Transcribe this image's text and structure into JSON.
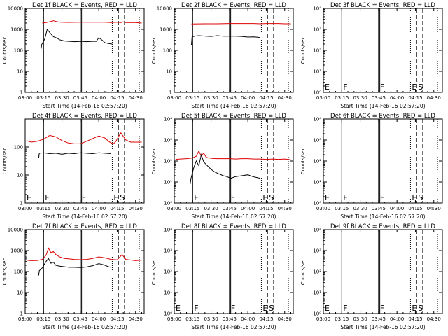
{
  "page": {
    "x_tick_labels": [
      "03:00",
      "03:15",
      "03:30",
      "03:45",
      "04:00",
      "04:15",
      "04:30"
    ],
    "xlabel": "Start Time (14-Feb-16 02:57:20)",
    "ylabel": "Counts/sec",
    "colors": {
      "events": "#000000",
      "lld": "#dd0000",
      "axes": "#000000"
    }
  },
  "chart_data": [
    {
      "type": "line",
      "title": "Det 1f BLACK = Events, RED = LLD",
      "xlim_minutes": [
        180,
        277
      ],
      "ylog": true,
      "ylim": [
        1,
        10000
      ],
      "y_tick_labels": [
        "1",
        "10",
        "100",
        "1000",
        "10000"
      ],
      "markers": [
        {
          "minute": 195,
          "style": "solid",
          "label": ""
        },
        {
          "minute": 225,
          "style": "solid",
          "label": ""
        },
        {
          "minute": 226,
          "style": "solid",
          "label": ""
        },
        {
          "minute": 251,
          "style": "dotted",
          "label": ""
        },
        {
          "minute": 256,
          "style": "dashed",
          "label": ""
        },
        {
          "minute": 261,
          "style": "dashed",
          "label": ""
        },
        {
          "minute": 273,
          "style": "dotted",
          "label": ""
        }
      ],
      "series": [
        {
          "name": "LLD",
          "color": "#dd0000",
          "x": [
            194,
            197,
            200,
            203,
            206,
            209,
            215,
            225,
            235,
            245,
            250,
            255,
            258,
            260,
            262,
            270,
            275
          ],
          "y": [
            2000,
            2100,
            2300,
            2600,
            2300,
            2200,
            2150,
            2200,
            2200,
            2200,
            2100,
            2200,
            2100,
            2300,
            2100,
            2100,
            2000
          ]
        },
        {
          "name": "Events",
          "color": "#000000",
          "x": [
            193,
            193.5,
            196,
            198,
            200,
            203,
            206,
            208,
            212,
            220,
            226,
            230,
            235,
            238,
            240,
            243,
            245,
            248,
            251
          ],
          "y": [
            120,
            190,
            350,
            1000,
            700,
            450,
            380,
            320,
            280,
            260,
            270,
            260,
            270,
            270,
            400,
            300,
            230,
            210,
            200
          ]
        }
      ]
    },
    {
      "type": "line",
      "title": "Det 2f BLACK = Events, RED = LLD",
      "xlim_minutes": [
        180,
        277
      ],
      "ylog": true,
      "ylim": [
        1,
        10000
      ],
      "y_tick_labels": [
        "1",
        "10",
        "100",
        "1000",
        "10000"
      ],
      "markers": [
        {
          "minute": 195,
          "style": "solid",
          "label": ""
        },
        {
          "minute": 225,
          "style": "solid",
          "label": ""
        },
        {
          "minute": 226,
          "style": "solid",
          "label": ""
        },
        {
          "minute": 251,
          "style": "dotted",
          "label": ""
        },
        {
          "minute": 256,
          "style": "dashed",
          "label": ""
        },
        {
          "minute": 261,
          "style": "dashed",
          "label": ""
        },
        {
          "minute": 273,
          "style": "dotted",
          "label": ""
        }
      ],
      "series": [
        {
          "name": "LLD",
          "color": "#dd0000",
          "x": [
            194,
            205,
            215,
            225,
            235,
            245,
            250,
            255,
            260,
            265,
            270,
            275
          ],
          "y": [
            1800,
            1850,
            1850,
            1900,
            1900,
            1900,
            1850,
            1900,
            1900,
            1900,
            1850,
            1850
          ]
        },
        {
          "name": "Events",
          "color": "#000000",
          "x": [
            194,
            194.5,
            197,
            200,
            205,
            210,
            215,
            220,
            225,
            230,
            235,
            240,
            245,
            248,
            250
          ],
          "y": [
            180,
            440,
            480,
            500,
            480,
            460,
            500,
            470,
            480,
            470,
            460,
            430,
            440,
            420,
            400
          ]
        }
      ]
    },
    {
      "type": "line",
      "title": "Det 3f BLACK = Events, RED = LLD",
      "xlim_minutes": [
        180,
        277
      ],
      "ylog": true,
      "ylim": [
        1,
        10000
      ],
      "y_tick_labels": [
        "10⁰",
        "10¹",
        "10²",
        "10³",
        "10⁴"
      ],
      "markers": [
        {
          "minute": 195,
          "style": "solid",
          "label": "F"
        },
        {
          "minute": 225,
          "style": "solid",
          "label": "F"
        },
        {
          "minute": 226,
          "style": "solid",
          "label": ""
        },
        {
          "minute": 251,
          "style": "dotted",
          "label": "E"
        },
        {
          "minute": 256,
          "style": "dashed",
          "label": "S"
        },
        {
          "minute": 261,
          "style": "dashed",
          "label": ""
        },
        {
          "minute": 273,
          "style": "dotted",
          "label": ""
        }
      ],
      "edge_label": "E",
      "series": []
    },
    {
      "type": "line",
      "title": "Det 4f BLACK = Events, RED = LLD",
      "xlim_minutes": [
        180,
        277
      ],
      "ylog": true,
      "ylim": [
        1,
        1000
      ],
      "y_tick_labels": [
        "1",
        "10",
        "100"
      ],
      "markers": [
        {
          "minute": 195,
          "style": "solid",
          "label": "F"
        },
        {
          "minute": 225,
          "style": "solid",
          "label": "F"
        },
        {
          "minute": 226,
          "style": "solid",
          "label": ""
        },
        {
          "minute": 251,
          "style": "dotted",
          "label": "E"
        },
        {
          "minute": 256,
          "style": "dashed",
          "label": "S"
        },
        {
          "minute": 261,
          "style": "dashed",
          "label": ""
        },
        {
          "minute": 273,
          "style": "dotted",
          "label": ""
        }
      ],
      "edge_label": "E",
      "series": [
        {
          "name": "LLD",
          "color": "#dd0000",
          "x": [
            181,
            185,
            190,
            195,
            200,
            205,
            210,
            215,
            220,
            225,
            230,
            235,
            240,
            245,
            248,
            250,
            252,
            254,
            256,
            258,
            262,
            266,
            270,
            275
          ],
          "y": [
            170,
            150,
            160,
            190,
            260,
            230,
            170,
            140,
            130,
            130,
            160,
            200,
            250,
            210,
            160,
            140,
            130,
            160,
            230,
            320,
            180,
            150,
            150,
            150
          ]
        },
        {
          "name": "Events",
          "color": "#000000",
          "x": [
            191,
            191.5,
            195,
            200,
            205,
            210,
            215,
            220,
            225,
            230,
            235,
            240,
            245,
            250
          ],
          "y": [
            40,
            60,
            62,
            58,
            60,
            55,
            60,
            58,
            62,
            60,
            58,
            62,
            60,
            58
          ]
        }
      ]
    },
    {
      "type": "line",
      "title": "Det 5f BLACK = Events, RED = LLD",
      "xlim_minutes": [
        180,
        277
      ],
      "ylog": true,
      "ylim": [
        1,
        10000
      ],
      "y_tick_labels": [
        "10⁰",
        "10¹",
        "10²",
        "10³",
        "10⁴"
      ],
      "markers": [
        {
          "minute": 195,
          "style": "solid",
          "label": "F"
        },
        {
          "minute": 225,
          "style": "solid",
          "label": "F"
        },
        {
          "minute": 226,
          "style": "solid",
          "label": ""
        },
        {
          "minute": 251,
          "style": "dotted",
          "label": "E"
        },
        {
          "minute": 256,
          "style": "dashed",
          "label": "S"
        },
        {
          "minute": 261,
          "style": "dashed",
          "label": ""
        },
        {
          "minute": 273,
          "style": "dotted",
          "label": ""
        }
      ],
      "series": [
        {
          "name": "LLD",
          "color": "#dd0000",
          "x": [
            181,
            185,
            190,
            195,
            198,
            200,
            202,
            204,
            206,
            210,
            215,
            220,
            225,
            230,
            235,
            240,
            245,
            250,
            255,
            260,
            265,
            270,
            275
          ],
          "y": [
            120,
            125,
            130,
            140,
            170,
            300,
            170,
            240,
            150,
            135,
            130,
            130,
            130,
            125,
            130,
            130,
            125,
            125,
            120,
            125,
            120,
            125,
            115
          ]
        },
        {
          "name": "Events",
          "color": "#000000",
          "x": [
            193,
            193.5,
            196,
            198,
            200,
            202,
            204,
            207,
            210,
            213,
            216,
            220,
            223,
            226,
            230,
            235,
            240,
            244,
            248,
            250
          ],
          "y": [
            8,
            14,
            50,
            100,
            60,
            200,
            90,
            60,
            40,
            30,
            25,
            20,
            18,
            15,
            18,
            20,
            22,
            18,
            16,
            15
          ]
        }
      ]
    },
    {
      "type": "line",
      "title": "Det 6f BLACK = Events, RED = LLD",
      "xlim_minutes": [
        180,
        277
      ],
      "ylog": true,
      "ylim": [
        1,
        10000
      ],
      "y_tick_labels": [
        "10⁰",
        "10¹",
        "10²",
        "10³",
        "10⁴"
      ],
      "markers": [
        {
          "minute": 195,
          "style": "solid",
          "label": "F"
        },
        {
          "minute": 225,
          "style": "solid",
          "label": "F"
        },
        {
          "minute": 226,
          "style": "solid",
          "label": ""
        },
        {
          "minute": 251,
          "style": "dotted",
          "label": "E"
        },
        {
          "minute": 256,
          "style": "dashed",
          "label": "S"
        },
        {
          "minute": 261,
          "style": "dashed",
          "label": ""
        },
        {
          "minute": 273,
          "style": "dotted",
          "label": ""
        }
      ],
      "edge_label": "E",
      "series": []
    },
    {
      "type": "line",
      "title": "Det 7f BLACK = Events, RED = LLD",
      "xlim_minutes": [
        180,
        277
      ],
      "ylog": true,
      "ylim": [
        1,
        10000
      ],
      "y_tick_labels": [
        "1",
        "10",
        "100",
        "1000",
        "10000"
      ],
      "markers": [
        {
          "minute": 195,
          "style": "solid",
          "label": ""
        },
        {
          "minute": 225,
          "style": "solid",
          "label": ""
        },
        {
          "minute": 226,
          "style": "solid",
          "label": ""
        },
        {
          "minute": 251,
          "style": "dotted",
          "label": ""
        },
        {
          "minute": 256,
          "style": "dashed",
          "label": ""
        },
        {
          "minute": 261,
          "style": "dashed",
          "label": ""
        },
        {
          "minute": 273,
          "style": "dotted",
          "label": ""
        }
      ],
      "series": [
        {
          "name": "LLD",
          "color": "#dd0000",
          "x": [
            181,
            185,
            190,
            194,
            197,
            199,
            201,
            203,
            205,
            208,
            212,
            216,
            220,
            225,
            230,
            235,
            240,
            245,
            250,
            255,
            259,
            262,
            265,
            270,
            275
          ],
          "y": [
            350,
            330,
            340,
            380,
            600,
            1300,
            800,
            900,
            650,
            500,
            420,
            400,
            380,
            370,
            380,
            420,
            500,
            450,
            380,
            360,
            650,
            380,
            360,
            330,
            350
          ]
        },
        {
          "name": "Events",
          "color": "#000000",
          "x": [
            191,
            191.5,
            194,
            197,
            199,
            201,
            203,
            205,
            208,
            212,
            216,
            220,
            225,
            230,
            235,
            240,
            244,
            248,
            250
          ],
          "y": [
            65,
            110,
            150,
            300,
            420,
            250,
            280,
            200,
            180,
            170,
            160,
            160,
            155,
            165,
            190,
            240,
            210,
            170,
            160
          ]
        }
      ]
    },
    {
      "type": "line",
      "title": "Det 8f BLACK = Events, RED = LLD",
      "xlim_minutes": [
        180,
        277
      ],
      "ylog": true,
      "ylim": [
        1,
        10000
      ],
      "y_tick_labels": [
        "10⁰",
        "10¹",
        "10²",
        "10³",
        "10⁴"
      ],
      "markers": [
        {
          "minute": 195,
          "style": "solid",
          "label": "F"
        },
        {
          "minute": 225,
          "style": "solid",
          "label": "F"
        },
        {
          "minute": 226,
          "style": "solid",
          "label": ""
        },
        {
          "minute": 251,
          "style": "dotted",
          "label": "E"
        },
        {
          "minute": 256,
          "style": "dashed",
          "label": "S"
        },
        {
          "minute": 261,
          "style": "dashed",
          "label": ""
        },
        {
          "minute": 273,
          "style": "dotted",
          "label": ""
        }
      ],
      "edge_label": "E",
      "series": []
    },
    {
      "type": "line",
      "title": "Det 9f BLACK = Events, RED = LLD",
      "xlim_minutes": [
        180,
        277
      ],
      "ylog": true,
      "ylim": [
        1,
        10000
      ],
      "y_tick_labels": [
        "10⁰",
        "10¹",
        "10²",
        "10³",
        "10⁴"
      ],
      "markers": [
        {
          "minute": 195,
          "style": "solid",
          "label": "F"
        },
        {
          "minute": 225,
          "style": "solid",
          "label": "F"
        },
        {
          "minute": 226,
          "style": "solid",
          "label": ""
        },
        {
          "minute": 251,
          "style": "dotted",
          "label": "E"
        },
        {
          "minute": 256,
          "style": "dashed",
          "label": "S"
        },
        {
          "minute": 261,
          "style": "dashed",
          "label": ""
        },
        {
          "minute": 273,
          "style": "dotted",
          "label": ""
        }
      ],
      "edge_label": "E",
      "series": []
    }
  ]
}
